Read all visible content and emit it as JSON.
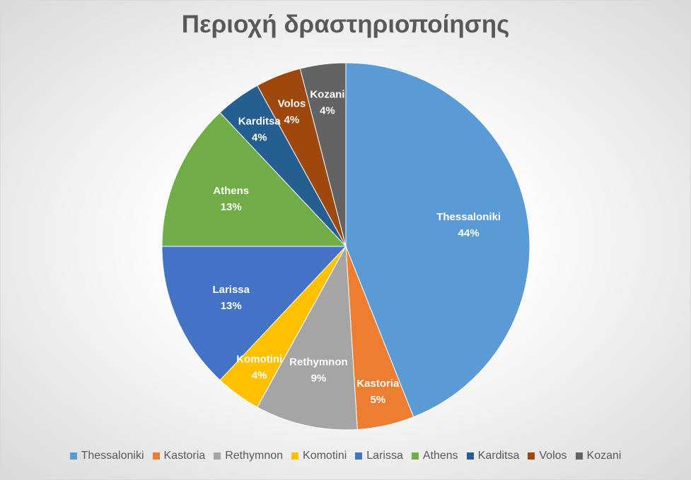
{
  "chart_data": {
    "type": "pie",
    "title": "Περιοχή δραστηριοποίησης",
    "categories": [
      "Thessaloniki",
      "Kastoria",
      "Rethymnon",
      "Komotini",
      "Larissa",
      "Athens",
      "Karditsa",
      "Volos",
      "Kozani"
    ],
    "values": [
      44,
      5,
      9,
      4,
      13,
      13,
      4,
      4,
      4
    ],
    "value_labels": [
      "44%",
      "5%",
      "9%",
      "4%",
      "13%",
      "13%",
      "4%",
      "4%",
      "4%"
    ],
    "colors": [
      "#5B9BD5",
      "#ED7D31",
      "#A5A5A5",
      "#FFC000",
      "#4472C4",
      "#70AD47",
      "#255E91",
      "#9E480E",
      "#636363"
    ],
    "legend_position": "bottom",
    "data_labels": "category and percent inside slices"
  }
}
